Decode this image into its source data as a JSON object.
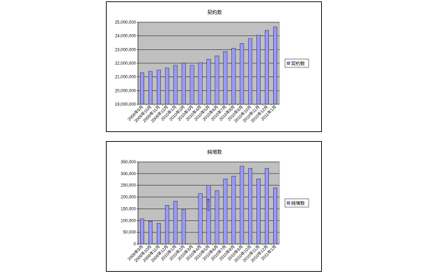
{
  "colors": {
    "plot_bg": "#c0c0c0",
    "bar_fill": "#9999ff",
    "bar_stroke": "#000000",
    "grid": "#000000"
  },
  "chart_data": [
    {
      "type": "bar",
      "title": "契約数",
      "categories": [
        "2009年9月",
        "2009年10月",
        "2009年11月",
        "2009年12月",
        "2010年1月",
        "2010年2月",
        "2010年3月",
        "2010年4月",
        "2010年5月",
        "2010年6月",
        "2010年7月",
        "2010年8月",
        "2010年9月",
        "2010年10月",
        "2010年11月",
        "2010年12月",
        "2011年1月"
      ],
      "series": [
        {
          "name": "契約数",
          "values": [
            21300000,
            21400000,
            21500000,
            21650000,
            21850000,
            22000000,
            21850000,
            22050000,
            22300000,
            22550000,
            22850000,
            23100000,
            23450000,
            23800000,
            24050000,
            24400000,
            24650000
          ]
        }
      ],
      "ylim": [
        19000000,
        25000000
      ],
      "ytick_step": 1000000,
      "ytick_labels": [
        "19,000,000",
        "20,000,000",
        "21,000,000",
        "22,000,000",
        "23,000,000",
        "24,000,000",
        "25,000,000"
      ],
      "grid": true,
      "legend": "right"
    },
    {
      "type": "bar",
      "title": "純増数",
      "categories": [
        "2009年9月",
        "2009年10月",
        "2009年11月",
        "2009年12月",
        "2010年1月",
        "2010年2月",
        "2010年3月",
        "2010年4月",
        "2010年5月",
        "2010年6月",
        "2010年7月",
        "2010年8月",
        "2010年9月",
        "2010年10月",
        "2010年11月",
        "2010年12月",
        "2011年1月"
      ],
      "series": [
        {
          "name": "純増数",
          "values": [
            107000,
            97000,
            88000,
            165000,
            183000,
            146000,
            0,
            215000,
            250000,
            228000,
            278000,
            290000,
            332000,
            323000,
            278000,
            323000,
            240000
          ]
        }
      ],
      "annotations": [
        {
          "category": "2010年5月",
          "text": "集計方法"
        }
      ],
      "ylim": [
        0,
        350000
      ],
      "ytick_step": 50000,
      "ytick_labels": [
        "0",
        "50,000",
        "100,000",
        "150,000",
        "200,000",
        "250,000",
        "300,000",
        "350,000"
      ],
      "grid": true,
      "legend": "right"
    }
  ]
}
